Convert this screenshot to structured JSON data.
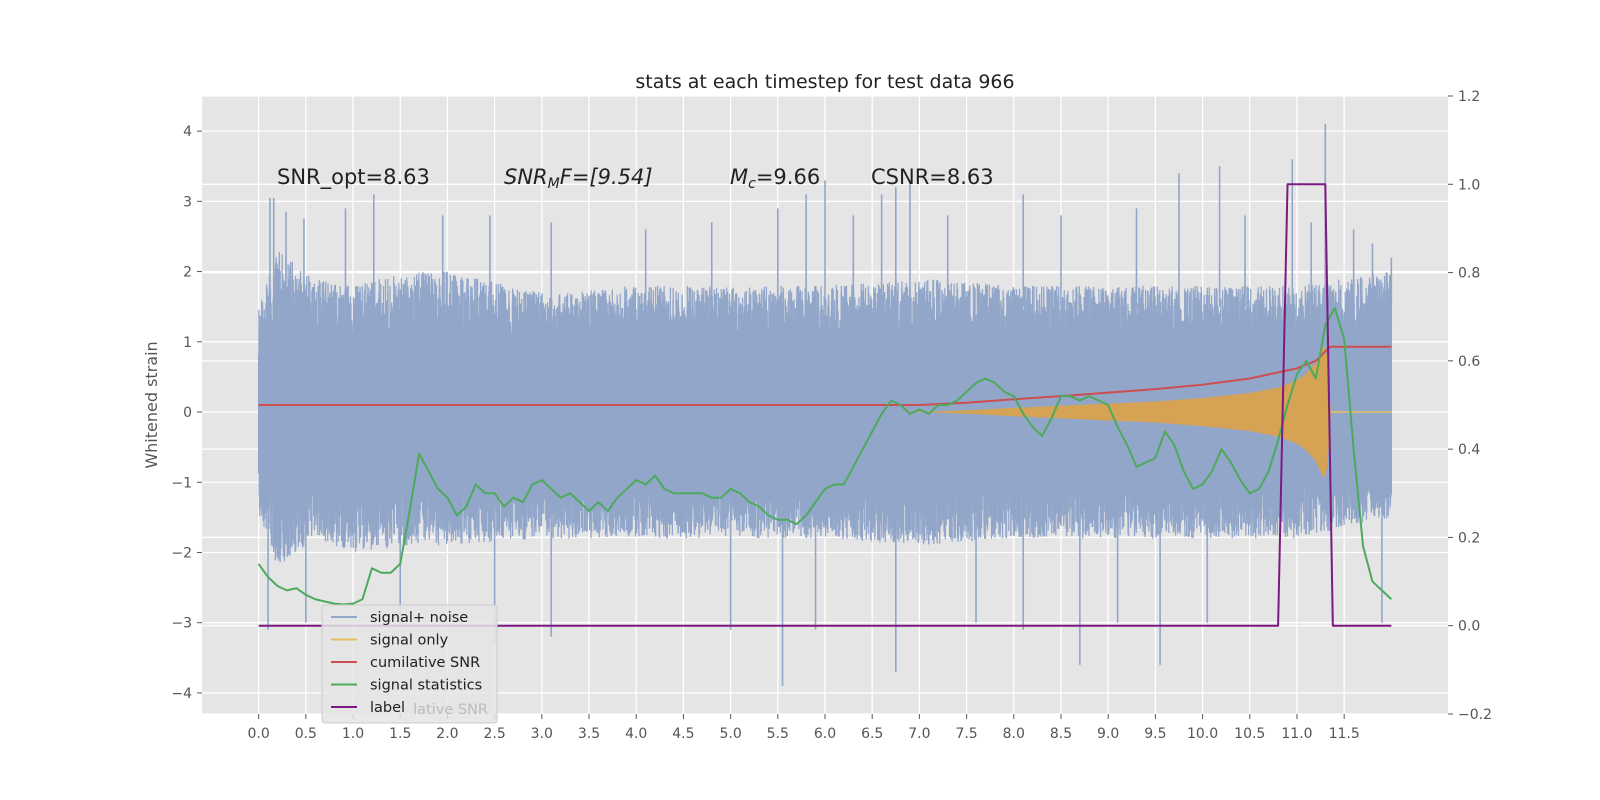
{
  "chart_data": {
    "type": "line",
    "title": "stats at each timestep for test data 966",
    "ylabel": "Whitened strain",
    "xlabel": "",
    "xlim": [
      -0.6,
      12.6
    ],
    "ylim": [
      -4.3,
      4.5
    ],
    "y2lim": [
      -0.2,
      1.2
    ],
    "x_ticks": [
      "0.0",
      "0.5",
      "1.0",
      "1.5",
      "2.0",
      "2.5",
      "3.0",
      "3.5",
      "4.0",
      "4.5",
      "5.0",
      "5.5",
      "6.0",
      "6.5",
      "7.0",
      "7.5",
      "8.0",
      "8.5",
      "9.0",
      "9.5",
      "10.0",
      "10.5",
      "11.0",
      "11.5"
    ],
    "y_ticks": [
      4,
      3,
      2,
      1,
      0,
      -1,
      -2,
      -3,
      -4
    ],
    "y_tick_labels": [
      "4",
      "3",
      "2",
      "1",
      "0",
      "−1",
      "−2",
      "−3",
      "−4"
    ],
    "y2_ticks": [
      1.2,
      1.0,
      0.8,
      0.6,
      0.4,
      0.2,
      0.0,
      -0.2
    ],
    "y2_tick_labels": [
      "1.2",
      "1.0",
      "0.8",
      "0.6",
      "0.4",
      "0.2",
      "0.0",
      "−0.2"
    ],
    "grid": true,
    "legend_position": "lower-left",
    "annotations": {
      "snr_opt": "SNR_opt=8.63",
      "snr_mf_base": "SNR",
      "snr_mf_sub": "M",
      "snr_mf_rest": "F=[9.54]",
      "mc_base": "M",
      "mc_sub": "c",
      "mc_rest": "=9.66",
      "csnr": "CSNR=8.63"
    },
    "series": [
      {
        "name": "signal+ noise",
        "axis": "left",
        "color": "#92a6ca",
        "style": "dense noise band",
        "x_range": [
          0.0,
          12.0
        ],
        "envelope_upper": [
          [
            0.0,
            1.5
          ],
          [
            0.2,
            2.3
          ],
          [
            0.6,
            1.9
          ],
          [
            1.0,
            1.8
          ],
          [
            1.6,
            2.0
          ],
          [
            2.0,
            2.0
          ],
          [
            3.0,
            1.7
          ],
          [
            4.0,
            1.8
          ],
          [
            5.0,
            1.8
          ],
          [
            6.0,
            1.8
          ],
          [
            7.0,
            1.9
          ],
          [
            8.0,
            1.8
          ],
          [
            9.0,
            1.8
          ],
          [
            10.0,
            1.8
          ],
          [
            11.0,
            1.8
          ],
          [
            12.0,
            2.0
          ]
        ],
        "envelope_lower": [
          [
            0.0,
            -1.5
          ],
          [
            0.2,
            -2.2
          ],
          [
            0.6,
            -1.8
          ],
          [
            1.0,
            -2.0
          ],
          [
            1.6,
            -1.9
          ],
          [
            2.0,
            -1.9
          ],
          [
            3.0,
            -1.8
          ],
          [
            4.0,
            -1.8
          ],
          [
            5.0,
            -1.8
          ],
          [
            6.0,
            -1.8
          ],
          [
            7.0,
            -1.9
          ],
          [
            8.0,
            -1.8
          ],
          [
            9.0,
            -1.8
          ],
          [
            10.0,
            -1.8
          ],
          [
            11.0,
            -1.8
          ],
          [
            12.0,
            -1.5
          ]
        ],
        "spikes": [
          [
            0.12,
            3.05
          ],
          [
            0.16,
            3.05
          ],
          [
            0.29,
            2.85
          ],
          [
            0.48,
            2.75
          ],
          [
            0.92,
            2.9
          ],
          [
            1.22,
            3.1
          ],
          [
            1.95,
            2.8
          ],
          [
            2.45,
            2.8
          ],
          [
            3.1,
            2.7
          ],
          [
            4.1,
            2.6
          ],
          [
            4.8,
            2.7
          ],
          [
            5.5,
            2.9
          ],
          [
            5.8,
            3.1
          ],
          [
            6.0,
            3.3
          ],
          [
            6.3,
            2.8
          ],
          [
            6.6,
            3.1
          ],
          [
            6.75,
            3.2
          ],
          [
            6.9,
            3.3
          ],
          [
            7.3,
            2.8
          ],
          [
            8.1,
            3.1
          ],
          [
            8.5,
            2.8
          ],
          [
            9.3,
            2.9
          ],
          [
            9.75,
            3.4
          ],
          [
            10.18,
            3.5
          ],
          [
            10.45,
            2.8
          ],
          [
            10.95,
            3.6
          ],
          [
            11.15,
            2.7
          ],
          [
            11.3,
            4.1
          ],
          [
            11.6,
            2.6
          ],
          [
            11.8,
            2.4
          ],
          [
            12.0,
            2.2
          ],
          [
            0.1,
            -3.1
          ],
          [
            0.5,
            -3.0
          ],
          [
            1.5,
            -3.1
          ],
          [
            2.5,
            -3.3
          ],
          [
            3.1,
            -3.2
          ],
          [
            5.0,
            -3.1
          ],
          [
            5.55,
            -3.9
          ],
          [
            5.9,
            -3.1
          ],
          [
            6.75,
            -3.7
          ],
          [
            7.6,
            -3.0
          ],
          [
            8.1,
            -3.1
          ],
          [
            8.7,
            -3.6
          ],
          [
            9.1,
            -3.0
          ],
          [
            9.55,
            -3.6
          ],
          [
            10.05,
            -3.0
          ],
          [
            11.9,
            -3.0
          ]
        ]
      },
      {
        "name": "signal only",
        "axis": "left",
        "color": "#d6a355",
        "style": "chirp envelope",
        "x_range": [
          6.8,
          12.0
        ],
        "envelope": [
          [
            6.8,
            0.0
          ],
          [
            7.2,
            0.01
          ],
          [
            7.6,
            0.03
          ],
          [
            8.0,
            0.06
          ],
          [
            8.5,
            0.09
          ],
          [
            9.0,
            0.12
          ],
          [
            9.5,
            0.15
          ],
          [
            10.0,
            0.2
          ],
          [
            10.5,
            0.27
          ],
          [
            10.8,
            0.35
          ],
          [
            11.0,
            0.45
          ],
          [
            11.1,
            0.55
          ],
          [
            11.2,
            0.7
          ],
          [
            11.28,
            0.95
          ],
          [
            11.32,
            0.8
          ],
          [
            11.36,
            0.0
          ],
          [
            12.0,
            0.0
          ]
        ]
      },
      {
        "name": "cumilative SNR",
        "axis": "right",
        "color": "#cc4e4e",
        "x": [
          0.0,
          6.0,
          7.0,
          7.5,
          8.0,
          8.5,
          9.0,
          9.5,
          10.0,
          10.5,
          11.0,
          11.2,
          11.35,
          12.0
        ],
        "y": [
          0.5,
          0.5,
          0.5,
          0.505,
          0.513,
          0.52,
          0.528,
          0.536,
          0.546,
          0.56,
          0.583,
          0.6,
          0.632,
          0.632
        ]
      },
      {
        "name": "signal statistics",
        "axis": "right",
        "color": "#4daa5c",
        "x": [
          0.0,
          0.1,
          0.2,
          0.3,
          0.4,
          0.5,
          0.6,
          0.7,
          0.8,
          0.9,
          1.0,
          1.1,
          1.2,
          1.3,
          1.4,
          1.5,
          1.6,
          1.7,
          1.8,
          1.9,
          2.0,
          2.1,
          2.2,
          2.3,
          2.4,
          2.5,
          2.6,
          2.7,
          2.8,
          2.9,
          3.0,
          3.1,
          3.2,
          3.3,
          3.4,
          3.5,
          3.6,
          3.7,
          3.8,
          3.9,
          4.0,
          4.1,
          4.2,
          4.3,
          4.4,
          4.5,
          4.6,
          4.7,
          4.8,
          4.9,
          5.0,
          5.1,
          5.2,
          5.3,
          5.4,
          5.5,
          5.6,
          5.7,
          5.8,
          5.9,
          6.0,
          6.1,
          6.2,
          6.3,
          6.4,
          6.5,
          6.6,
          6.7,
          6.8,
          6.9,
          7.0,
          7.1,
          7.2,
          7.3,
          7.4,
          7.5,
          7.6,
          7.7,
          7.8,
          7.9,
          8.0,
          8.1,
          8.2,
          8.3,
          8.4,
          8.5,
          8.6,
          8.7,
          8.8,
          8.9,
          9.0,
          9.1,
          9.2,
          9.3,
          9.4,
          9.5,
          9.6,
          9.7,
          9.8,
          9.9,
          10.0,
          10.1,
          10.2,
          10.3,
          10.4,
          10.5,
          10.6,
          10.7,
          10.8,
          10.9,
          11.0,
          11.1,
          11.2,
          11.3,
          11.4,
          11.5,
          11.6,
          11.7,
          11.8,
          11.9,
          12.0
        ],
        "y": [
          0.14,
          0.11,
          0.09,
          0.08,
          0.085,
          0.07,
          0.06,
          0.055,
          0.05,
          0.048,
          0.05,
          0.06,
          0.13,
          0.12,
          0.12,
          0.14,
          0.26,
          0.39,
          0.35,
          0.31,
          0.29,
          0.25,
          0.27,
          0.32,
          0.3,
          0.3,
          0.27,
          0.29,
          0.28,
          0.32,
          0.33,
          0.31,
          0.29,
          0.3,
          0.28,
          0.26,
          0.28,
          0.26,
          0.29,
          0.31,
          0.33,
          0.32,
          0.34,
          0.31,
          0.3,
          0.3,
          0.3,
          0.3,
          0.29,
          0.29,
          0.31,
          0.3,
          0.28,
          0.27,
          0.25,
          0.24,
          0.24,
          0.23,
          0.25,
          0.28,
          0.31,
          0.32,
          0.32,
          0.36,
          0.4,
          0.44,
          0.48,
          0.51,
          0.5,
          0.48,
          0.49,
          0.48,
          0.5,
          0.5,
          0.51,
          0.53,
          0.55,
          0.56,
          0.55,
          0.53,
          0.52,
          0.48,
          0.45,
          0.43,
          0.47,
          0.52,
          0.52,
          0.51,
          0.52,
          0.51,
          0.5,
          0.45,
          0.41,
          0.36,
          0.37,
          0.38,
          0.44,
          0.41,
          0.35,
          0.31,
          0.32,
          0.35,
          0.4,
          0.37,
          0.33,
          0.3,
          0.31,
          0.35,
          0.42,
          0.5,
          0.57,
          0.6,
          0.56,
          0.68,
          0.72,
          0.65,
          0.4,
          0.18,
          0.1,
          0.08,
          0.06
        ],
        "style": "smoothed"
      },
      {
        "name": "label",
        "axis": "right",
        "color": "#7b1a80",
        "x": [
          0.0,
          10.8,
          10.9,
          11.3,
          11.38,
          12.0
        ],
        "y": [
          0.0,
          0.0,
          1.0,
          1.0,
          0.0,
          0.0
        ]
      }
    ],
    "legend": [
      {
        "name": "signal+ noise",
        "color": "#92a6ca"
      },
      {
        "name": "signal only",
        "color": "#e6c060"
      },
      {
        "name": "cumilative SNR",
        "color": "#cc4e4e"
      },
      {
        "name": "signal statistics",
        "color": "#4daa5c"
      },
      {
        "name": "label",
        "color": "#7b1a80"
      }
    ],
    "legend_ghost_text": "lative SNR"
  }
}
